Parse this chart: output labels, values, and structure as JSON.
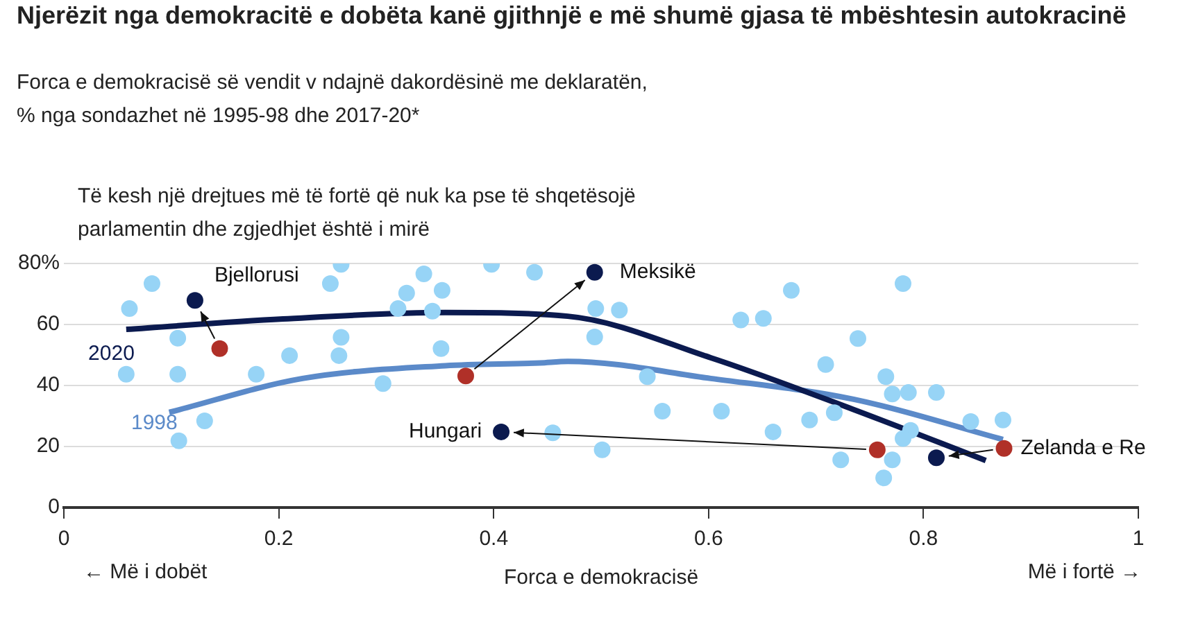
{
  "chart_data": {
    "type": "scatter",
    "title": "Njerëzit nga demokracitë e dobëta kanë gjithnjë e më shumë gjasa të mbështesin autokracinë",
    "subtitle": "Forca e demokracisë së vendit v ndajnë dakordësinë me deklaratën,\n% nga sondazhet në 1995-98 dhe 2017-20*",
    "ylabel": "Të kesh një drejtues më të fortë që nuk ka pse të shqetësojë\nparlamentin dhe zgjedhjet është i mirë",
    "xlabel": "Forca e demokracisë",
    "annotations": [
      "← Më i dobët",
      "Më i fortë →",
      {
        "text": "Bjellorusi",
        "x": 0.122,
        "y": 67.9
      },
      {
        "text": "Meksikë",
        "x": 0.494,
        "y": 77.1
      },
      {
        "text": "Hungari",
        "x": 0.407,
        "y": 24.8
      },
      {
        "text": "Zelanda e Re",
        "x": 0.875,
        "y": 19.4
      }
    ],
    "xlim": [
      0,
      1
    ],
    "xticks": [
      0,
      0.2,
      0.4,
      0.6,
      0.8,
      1
    ],
    "ylim": [
      0,
      80
    ],
    "yticks": [
      0,
      20,
      40,
      60,
      {
        "value": 80,
        "label": "80%"
      }
    ],
    "grid": "y",
    "legend": false,
    "series": [
      {
        "marker": "circle",
        "color": "#97d4f6",
        "x": [
          0.061,
          0.082,
          0.058,
          0.106,
          0.106,
          0.107,
          0.131,
          0.179,
          0.21,
          0.248,
          0.258,
          0.258,
          0.256,
          0.297,
          0.311,
          0.319,
          0.335,
          0.343,
          0.352,
          0.351,
          0.398,
          0.438,
          0.455,
          0.495,
          0.517,
          0.494,
          0.543,
          0.557,
          0.501,
          0.612,
          0.677,
          0.63,
          0.651,
          0.66,
          0.694,
          0.717,
          0.709,
          0.739,
          0.723,
          0.765,
          0.771,
          0.786,
          0.781,
          0.812,
          0.788,
          0.781,
          0.771,
          0.763,
          0.844,
          0.874
        ],
        "values": [
          65.2,
          73.4,
          43.7,
          55.5,
          43.7,
          21.9,
          28.4,
          43.7,
          49.8,
          73.4,
          79.7,
          55.8,
          49.8,
          40.6,
          65.2,
          70.3,
          76.6,
          64.4,
          71.2,
          52.1,
          79.7,
          77.1,
          24.5,
          65.2,
          64.7,
          55.9,
          42.9,
          31.6,
          18.9,
          31.6,
          71.2,
          61.5,
          62,
          24.8,
          28.7,
          31.1,
          46.9,
          55.4,
          15.6,
          42.9,
          37.2,
          37.7,
          73.4,
          37.7,
          25.3,
          22.6,
          15.6,
          9.7,
          28.2,
          28.7
        ]
      },
      {
        "type": "line",
        "name": "2020",
        "color": "#0b1a4f",
        "x": [
          0.058,
          0.204,
          0.355,
          0.469,
          0.602,
          0.735,
          0.858
        ],
        "values": [
          58.4,
          61.8,
          63.9,
          62.7,
          49.1,
          32.1,
          15.4
        ]
      },
      {
        "type": "line",
        "name": "1998",
        "color": "#5b8ac9",
        "x": [
          0.098,
          0.222,
          0.355,
          0.443,
          0.469,
          0.602,
          0.735,
          0.874
        ],
        "values": [
          31.2,
          42.3,
          46.5,
          47.4,
          47.9,
          42.3,
          35.5,
          22.3
        ]
      },
      {
        "marker": "circle",
        "color": "#b03028",
        "x": [
          0.145,
          0.374,
          0.757,
          0.875
        ],
        "values": [
          52.1,
          43.1,
          18.9,
          19.4
        ]
      },
      {
        "marker": "circle",
        "color": "#0b1a4f",
        "x": [
          0.122,
          0.494,
          0.407,
          0.812
        ],
        "values": [
          67.9,
          77.1,
          24.8,
          16.3
        ]
      }
    ]
  }
}
